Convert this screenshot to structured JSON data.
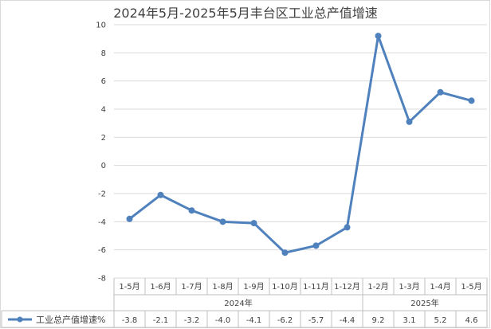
{
  "chart_data": {
    "type": "line",
    "title": "2024年5月-2025年5月丰台区工业总产值增速",
    "categories": [
      "1-5月",
      "1-6月",
      "1-7月",
      "1-8月",
      "1-9月",
      "1-10月",
      "1-11月",
      "1-12月",
      "1-2月",
      "1-3月",
      "1-4月",
      "1-5月"
    ],
    "year_groups": [
      {
        "label": "2024年",
        "span": 8
      },
      {
        "label": "2025年",
        "span": 4
      }
    ],
    "series": [
      {
        "name": "工业总产值增速%",
        "values": [
          -3.8,
          -2.1,
          -3.2,
          -4.0,
          -4.1,
          -6.2,
          -5.7,
          -4.4,
          9.2,
          3.1,
          5.2,
          4.6
        ],
        "value_labels": [
          "-3.8",
          "-2.1",
          "-3.2",
          "-4.0",
          "-4.1",
          "-6.2",
          "-5.7",
          "-4.4",
          "9.2",
          "3.1",
          "5.2",
          "4.6"
        ],
        "color": "#4f81bd"
      }
    ],
    "ylim": [
      -8,
      10
    ],
    "yticks": [
      -8,
      -6,
      -4,
      -2,
      0,
      2,
      4,
      6,
      8,
      10
    ],
    "grid": true,
    "legend": "left-of-data-table"
  }
}
